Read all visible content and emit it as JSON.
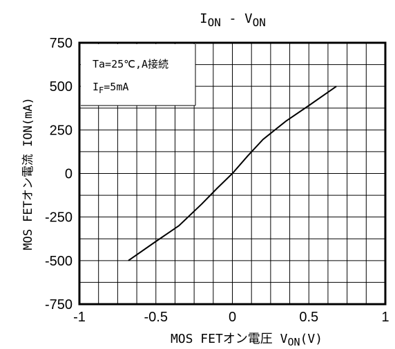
{
  "chart_data": {
    "type": "line",
    "title": {
      "main": "I",
      "main_sub": "ON",
      "sep": " - ",
      "second": "V",
      "second_sub": "ON"
    },
    "xlabel": {
      "prefix": "MOS FETオン電圧 ",
      "var": "V",
      "var_sub": "ON",
      "unit": "(V)"
    },
    "ylabel": "MOS FETオン電流 ION(mA)",
    "xlim": [
      -1,
      1
    ],
    "ylim": [
      -750,
      750
    ],
    "x_ticks": [
      "-1",
      "-0.5",
      "0",
      "0.5",
      "1"
    ],
    "y_ticks": [
      "750",
      "500",
      "250",
      "0",
      "-250",
      "-500",
      "-750"
    ],
    "x_minor_step": 0.125,
    "y_minor_step": 125,
    "grid": true,
    "annotation": {
      "line1": "Ta=25℃,A接続",
      "line2_var": "I",
      "line2_sub": "F",
      "line2_value": "=5mA"
    },
    "series": [
      {
        "x": [
          -0.68,
          -0.5,
          -0.35,
          -0.2,
          -0.1,
          0,
          0.1,
          0.2,
          0.35,
          0.5,
          0.68
        ],
        "y": [
          -500,
          -390,
          -300,
          -175,
          -85,
          0,
          100,
          195,
          300,
          390,
          500
        ]
      }
    ],
    "colors": {
      "line": "#000000",
      "grid": "#000000",
      "background": "#ffffff"
    }
  }
}
